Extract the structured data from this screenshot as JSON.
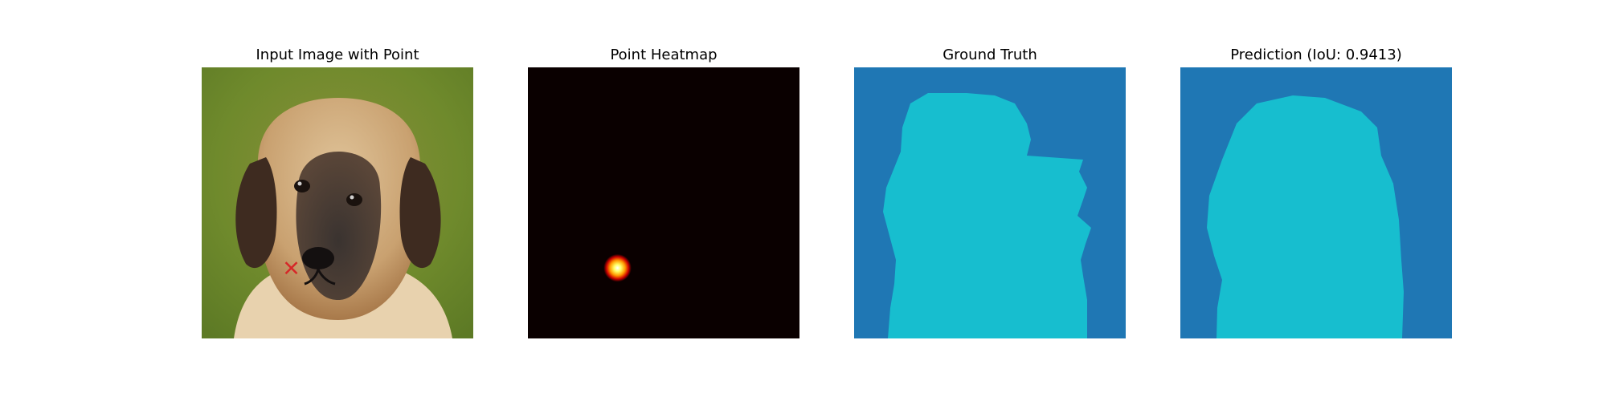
{
  "panels": [
    {
      "title": "Input Image with Point"
    },
    {
      "title": "Point Heatmap"
    },
    {
      "title": "Ground Truth"
    },
    {
      "title": "Prediction (IoU: 0.9413)"
    }
  ],
  "point": {
    "x": 0.33,
    "y": 0.74,
    "marker_color": "#d62728"
  },
  "colors": {
    "background_class": "#1f77b4",
    "foreground_class": "#17becf",
    "heatmap_low": "#0a0000",
    "heatmap_high": "#ffffff"
  },
  "iou": 0.9413
}
